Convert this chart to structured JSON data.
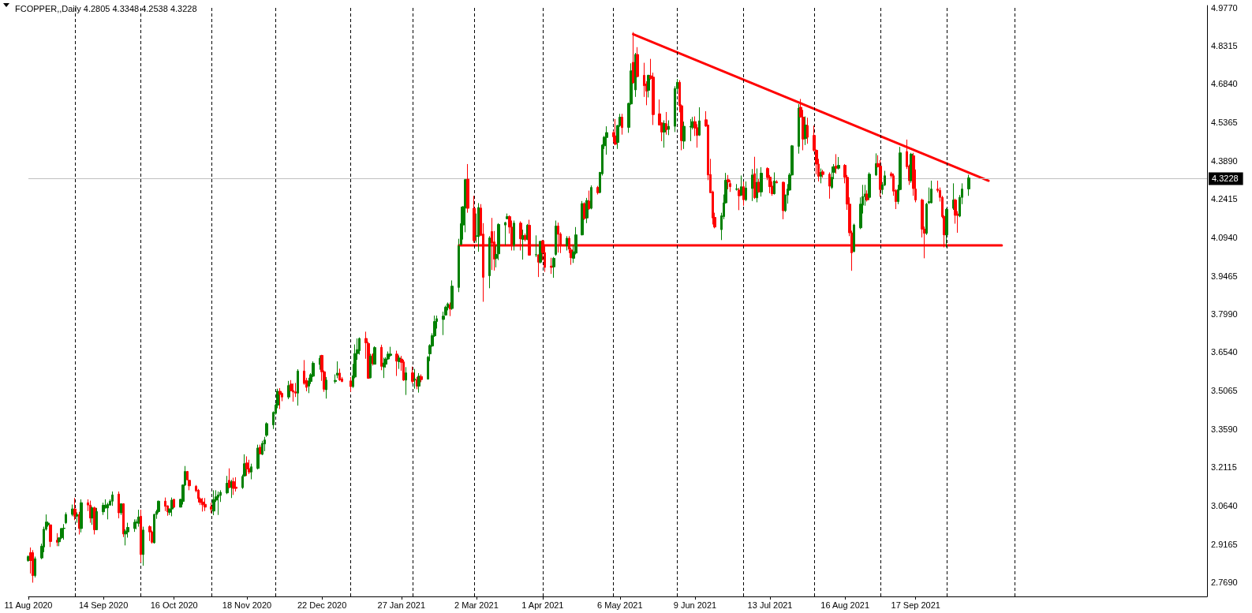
{
  "chart_data": {
    "type": "candlestick",
    "title": "FCOPPER,,Daily 4.2805 4.3348 4.2538 4.3228",
    "x": [
      "2020-08-11",
      "2020-08-12",
      "2020-08-13",
      "2020-08-14",
      "2020-08-17",
      "2020-08-18",
      "2020-08-19",
      "2020-08-20",
      "2020-08-21",
      "2020-08-24",
      "2020-08-25",
      "2020-08-26",
      "2020-08-27",
      "2020-08-28",
      "2020-08-31",
      "2020-09-01",
      "2020-09-02",
      "2020-09-03",
      "2020-09-04",
      "2020-09-07",
      "2020-09-08",
      "2020-09-09",
      "2020-09-10",
      "2020-09-11",
      "2020-09-14",
      "2020-09-15",
      "2020-09-16",
      "2020-09-17",
      "2020-09-18",
      "2020-09-21",
      "2020-09-22",
      "2020-09-23",
      "2020-09-24",
      "2020-09-25",
      "2020-09-28",
      "2020-09-29",
      "2020-09-30",
      "2020-10-01",
      "2020-10-02",
      "2020-10-05",
      "2020-10-06",
      "2020-10-07",
      "2020-10-08",
      "2020-10-09",
      "2020-10-12",
      "2020-10-13",
      "2020-10-14",
      "2020-10-15",
      "2020-10-16",
      "2020-10-19",
      "2020-10-20",
      "2020-10-21",
      "2020-10-22",
      "2020-10-23",
      "2020-10-26",
      "2020-10-27",
      "2020-10-28",
      "2020-10-29",
      "2020-10-30",
      "2020-11-02",
      "2020-11-03",
      "2020-11-04",
      "2020-11-05",
      "2020-11-06",
      "2020-11-09",
      "2020-11-10",
      "2020-11-11",
      "2020-11-12",
      "2020-11-13",
      "2020-11-16",
      "2020-11-17",
      "2020-11-18",
      "2020-11-19",
      "2020-11-20",
      "2020-11-23",
      "2020-11-24",
      "2020-11-25",
      "2020-11-26",
      "2020-11-27",
      "2020-11-30",
      "2020-12-01",
      "2020-12-02",
      "2020-12-03",
      "2020-12-04",
      "2020-12-07",
      "2020-12-08",
      "2020-12-09",
      "2020-12-10",
      "2020-12-11",
      "2020-12-14",
      "2020-12-15",
      "2020-12-16",
      "2020-12-17",
      "2020-12-18",
      "2020-12-21",
      "2020-12-22",
      "2020-12-23",
      "2020-12-24",
      "2020-12-28",
      "2020-12-29",
      "2020-12-30",
      "2020-12-31",
      "2021-01-04",
      "2021-01-05",
      "2021-01-06",
      "2021-01-07",
      "2021-01-08",
      "2021-01-11",
      "2021-01-12",
      "2021-01-13",
      "2021-01-14",
      "2021-01-15",
      "2021-01-18",
      "2021-01-19",
      "2021-01-20",
      "2021-01-21",
      "2021-01-22",
      "2021-01-25",
      "2021-01-26",
      "2021-01-27",
      "2021-01-28",
      "2021-01-29",
      "2021-02-01",
      "2021-02-02",
      "2021-02-03",
      "2021-02-04",
      "2021-02-05",
      "2021-02-08",
      "2021-02-09",
      "2021-02-10",
      "2021-02-11",
      "2021-02-12",
      "2021-02-15",
      "2021-02-16",
      "2021-02-17",
      "2021-02-18",
      "2021-02-19",
      "2021-02-22",
      "2021-02-23",
      "2021-02-24",
      "2021-02-25",
      "2021-02-26",
      "2021-03-01",
      "2021-03-02",
      "2021-03-03",
      "2021-03-04",
      "2021-03-05",
      "2021-03-08",
      "2021-03-09",
      "2021-03-10",
      "2021-03-11",
      "2021-03-12",
      "2021-03-15",
      "2021-03-16",
      "2021-03-17",
      "2021-03-18",
      "2021-03-19",
      "2021-03-22",
      "2021-03-23",
      "2021-03-24",
      "2021-03-25",
      "2021-03-26",
      "2021-03-29",
      "2021-03-30",
      "2021-03-31",
      "2021-04-01",
      "2021-04-02",
      "2021-04-05",
      "2021-04-06",
      "2021-04-07",
      "2021-04-08",
      "2021-04-09",
      "2021-04-12",
      "2021-04-13",
      "2021-04-14",
      "2021-04-15",
      "2021-04-16",
      "2021-04-19",
      "2021-04-20",
      "2021-04-21",
      "2021-04-22",
      "2021-04-23",
      "2021-04-26",
      "2021-04-27",
      "2021-04-28",
      "2021-04-29",
      "2021-04-30",
      "2021-05-03",
      "2021-05-04",
      "2021-05-05",
      "2021-05-06",
      "2021-05-07",
      "2021-05-10",
      "2021-05-11",
      "2021-05-12",
      "2021-05-13",
      "2021-05-14",
      "2021-05-17",
      "2021-05-18",
      "2021-05-19",
      "2021-05-20",
      "2021-05-21",
      "2021-05-24",
      "2021-05-25",
      "2021-05-26",
      "2021-05-27",
      "2021-05-28",
      "2021-05-31",
      "2021-06-01",
      "2021-06-02",
      "2021-06-03",
      "2021-06-04",
      "2021-06-07",
      "2021-06-08",
      "2021-06-09",
      "2021-06-10",
      "2021-06-11",
      "2021-06-14",
      "2021-06-15",
      "2021-06-16",
      "2021-06-17",
      "2021-06-18",
      "2021-06-21",
      "2021-06-22",
      "2021-06-23",
      "2021-06-24",
      "2021-06-25",
      "2021-06-28",
      "2021-06-29",
      "2021-06-30",
      "2021-07-01",
      "2021-07-02",
      "2021-07-05",
      "2021-07-06",
      "2021-07-07",
      "2021-07-08",
      "2021-07-09",
      "2021-07-12",
      "2021-07-13",
      "2021-07-14",
      "2021-07-15",
      "2021-07-16",
      "2021-07-19",
      "2021-07-20",
      "2021-07-21",
      "2021-07-22",
      "2021-07-23",
      "2021-07-26",
      "2021-07-27",
      "2021-07-28",
      "2021-07-29",
      "2021-07-30",
      "2021-08-02",
      "2021-08-03",
      "2021-08-04",
      "2021-08-05",
      "2021-08-06",
      "2021-08-09",
      "2021-08-10",
      "2021-08-11",
      "2021-08-12",
      "2021-08-13",
      "2021-08-16",
      "2021-08-17",
      "2021-08-18",
      "2021-08-19",
      "2021-08-20",
      "2021-08-23",
      "2021-08-24",
      "2021-08-25",
      "2021-08-26",
      "2021-08-27",
      "2021-08-30",
      "2021-08-31",
      "2021-09-01",
      "2021-09-02",
      "2021-09-03",
      "2021-09-06",
      "2021-09-07",
      "2021-09-08",
      "2021-09-09",
      "2021-09-10",
      "2021-09-13",
      "2021-09-14",
      "2021-09-15",
      "2021-09-16",
      "2021-09-17",
      "2021-09-20",
      "2021-09-21",
      "2021-09-22",
      "2021-09-23",
      "2021-09-24",
      "2021-09-27",
      "2021-09-28",
      "2021-09-29",
      "2021-09-30",
      "2021-10-01",
      "2021-10-04",
      "2021-10-05",
      "2021-10-06",
      "2021-10-07",
      "2021-10-08",
      "2021-10-11"
    ],
    "ohlc": [
      [
        2.853,
        2.873,
        2.848,
        2.868
      ],
      [
        2.883,
        2.903,
        2.803,
        2.853
      ],
      [
        2.883,
        2.893,
        2.768,
        2.795
      ],
      [
        2.795,
        2.868,
        2.788,
        2.86
      ],
      [
        2.863,
        2.918,
        2.858,
        2.908
      ],
      [
        2.905,
        2.983,
        2.885,
        2.973
      ],
      [
        2.973,
        3.03,
        2.968,
        3.001
      ],
      [
        2.99,
        3.003,
        2.983,
        2.997
      ],
      [
        2.99,
        2.991,
        2.905,
        2.926
      ],
      [
        2.931,
        2.958,
        2.908,
        2.923
      ],
      [
        2.925,
        2.943,
        2.908,
        2.94
      ],
      [
        2.94,
        2.978,
        2.935,
        2.976
      ],
      [
        2.976,
        2.993,
        2.933,
        2.977
      ],
      [
        2.998,
        3.038,
        2.993,
        3.03
      ],
      [
        3.03,
        3.068,
        3.023,
        3.051
      ],
      [
        3.051,
        3.093,
        3.008,
        3.023
      ],
      [
        3.023,
        3.038,
        2.998,
        3.03
      ],
      [
        3.03,
        3.04,
        2.953,
        2.976
      ],
      [
        2.976,
        3.088,
        2.961,
        3.075
      ],
      [
        3.075,
        3.088,
        3.043,
        3.066
      ],
      [
        3.066,
        3.083,
        2.998,
        3.016
      ],
      [
        3.016,
        3.06,
        2.99,
        3.055
      ],
      [
        3.055,
        3.06,
        2.953,
        2.971
      ],
      [
        2.971,
        3.055,
        2.97,
        3.041
      ],
      [
        3.04,
        3.075,
        3.028,
        3.065
      ],
      [
        3.055,
        3.088,
        3.053,
        3.066
      ],
      [
        3.055,
        3.075,
        3.011,
        3.068
      ],
      [
        3.066,
        3.088,
        3.063,
        3.081
      ],
      [
        3.081,
        3.118,
        3.063,
        3.105
      ],
      [
        3.108,
        3.118,
        3.015,
        3.036
      ],
      [
        3.036,
        3.073,
        3.028,
        3.071
      ],
      [
        3.071,
        3.073,
        2.943,
        2.955
      ],
      [
        2.955,
        2.973,
        2.911,
        2.966
      ],
      [
        2.963,
        2.998,
        2.941,
        2.98
      ],
      [
        2.976,
        3.011,
        2.963,
        3.0
      ],
      [
        2.997,
        3.011,
        2.973,
        3.001
      ],
      [
        2.996,
        3.048,
        2.983,
        3.02
      ],
      [
        3.023,
        3.048,
        2.845,
        2.876
      ],
      [
        2.876,
        2.983,
        2.833,
        2.97
      ],
      [
        2.983,
        2.988,
        2.928,
        2.963
      ],
      [
        2.963,
        2.968,
        2.918,
        2.923
      ],
      [
        2.921,
        3.033,
        2.918,
        3.03
      ],
      [
        3.03,
        3.048,
        3.013,
        3.041
      ],
      [
        3.041,
        3.083,
        3.035,
        3.081
      ],
      [
        3.081,
        3.095,
        3.043,
        3.061
      ],
      [
        3.063,
        3.065,
        3.025,
        3.04
      ],
      [
        3.038,
        3.053,
        3.028,
        3.051
      ],
      [
        3.051,
        3.095,
        3.023,
        3.085
      ],
      [
        3.088,
        3.09,
        3.055,
        3.058
      ],
      [
        3.058,
        3.09,
        3.057,
        3.088
      ],
      [
        3.08,
        3.145,
        3.068,
        3.143
      ],
      [
        3.143,
        3.216,
        3.14,
        3.195
      ],
      [
        3.195,
        3.197,
        3.161,
        3.163
      ],
      [
        3.161,
        3.163,
        3.123,
        3.14
      ],
      [
        3.138,
        3.143,
        3.115,
        3.121
      ],
      [
        3.123,
        3.128,
        3.076,
        3.091
      ],
      [
        3.09,
        3.095,
        3.066,
        3.076
      ],
      [
        3.078,
        3.093,
        3.041,
        3.067
      ],
      [
        3.069,
        3.093,
        3.043,
        3.058
      ],
      [
        3.06,
        3.075,
        3.035,
        3.05
      ],
      [
        3.043,
        3.123,
        3.027,
        3.087
      ],
      [
        3.085,
        3.123,
        3.078,
        3.098
      ],
      [
        3.096,
        3.118,
        3.028,
        3.105
      ],
      [
        3.103,
        3.123,
        3.078,
        3.115
      ],
      [
        3.113,
        3.178,
        3.108,
        3.15
      ],
      [
        3.161,
        3.207,
        3.131,
        3.133
      ],
      [
        3.133,
        3.163,
        3.093,
        3.156
      ],
      [
        3.156,
        3.171,
        3.105,
        3.13
      ],
      [
        3.135,
        3.173,
        3.118,
        3.13
      ],
      [
        3.133,
        3.183,
        3.128,
        3.176
      ],
      [
        3.178,
        3.261,
        3.175,
        3.225
      ],
      [
        3.228,
        3.253,
        3.178,
        3.205
      ],
      [
        3.206,
        3.24,
        3.185,
        3.193
      ],
      [
        3.193,
        3.225,
        3.165,
        3.213
      ],
      [
        3.207,
        3.298,
        3.203,
        3.285
      ],
      [
        3.288,
        3.298,
        3.261,
        3.263
      ],
      [
        3.261,
        3.313,
        3.258,
        3.303
      ],
      [
        3.301,
        3.328,
        3.273,
        3.316
      ],
      [
        3.334,
        3.384,
        3.328,
        3.379
      ],
      [
        3.374,
        3.426,
        3.358,
        3.422
      ],
      [
        3.418,
        3.456,
        3.413,
        3.45
      ],
      [
        3.45,
        3.513,
        3.438,
        3.503
      ],
      [
        3.503,
        3.515,
        3.435,
        3.491
      ],
      [
        3.495,
        3.498,
        3.465,
        3.481
      ],
      [
        3.481,
        3.543,
        3.473,
        3.525
      ],
      [
        3.531,
        3.546,
        3.503,
        3.505
      ],
      [
        3.506,
        3.533,
        3.463,
        3.5
      ],
      [
        3.501,
        3.535,
        3.481,
        3.496
      ],
      [
        3.496,
        3.588,
        3.448,
        3.581
      ],
      [
        3.581,
        3.623,
        3.528,
        3.533
      ],
      [
        3.545,
        3.555,
        3.503,
        3.518
      ],
      [
        3.523,
        3.555,
        3.496,
        3.543
      ],
      [
        3.541,
        3.573,
        3.531,
        3.567
      ],
      [
        3.561,
        3.618,
        3.558,
        3.611
      ],
      [
        3.606,
        3.641,
        3.586,
        3.63
      ],
      [
        3.641,
        3.643,
        3.543,
        3.578
      ],
      [
        3.578,
        3.583,
        3.501,
        3.511
      ],
      [
        3.509,
        3.558,
        3.475,
        3.546
      ],
      [
        3.541,
        3.568,
        3.533,
        3.545
      ],
      [
        3.565,
        3.618,
        3.553,
        3.573
      ],
      [
        3.573,
        3.59,
        3.543,
        3.547
      ],
      [
        3.551,
        3.558,
        3.538,
        3.541
      ],
      [
        3.543,
        3.558,
        3.501,
        3.521
      ],
      [
        3.521,
        3.608,
        3.516,
        3.563
      ],
      [
        3.558,
        3.683,
        3.553,
        3.648
      ],
      [
        3.648,
        3.706,
        3.624,
        3.663
      ],
      [
        3.659,
        3.71,
        3.644,
        3.706
      ],
      [
        3.706,
        3.732,
        3.628,
        3.689
      ],
      [
        3.687,
        3.693,
        3.551,
        3.553
      ],
      [
        3.555,
        3.647,
        3.553,
        3.638
      ],
      [
        3.644,
        3.649,
        3.602,
        3.609
      ],
      [
        3.607,
        3.676,
        3.606,
        3.671
      ],
      [
        3.672,
        3.682,
        3.584,
        3.599
      ],
      [
        3.596,
        3.632,
        3.554,
        3.612
      ],
      [
        3.607,
        3.634,
        3.594,
        3.627
      ],
      [
        3.627,
        3.656,
        3.624,
        3.646
      ],
      [
        3.641,
        3.674,
        3.636,
        3.646
      ],
      [
        3.646,
        3.659,
        3.562,
        3.619
      ],
      [
        3.617,
        3.641,
        3.589,
        3.631
      ],
      [
        3.627,
        3.639,
        3.582,
        3.614
      ],
      [
        3.616,
        3.624,
        3.543,
        3.546
      ],
      [
        3.546,
        3.596,
        3.489,
        3.574
      ],
      [
        3.574,
        3.598,
        3.533,
        3.541
      ],
      [
        3.546,
        3.589,
        3.513,
        3.551
      ],
      [
        3.548,
        3.558,
        3.511,
        3.523
      ],
      [
        3.523,
        3.573,
        3.498,
        3.561
      ],
      [
        3.56,
        3.568,
        3.538,
        3.548
      ],
      [
        3.55,
        3.639,
        3.548,
        3.634
      ],
      [
        3.647,
        3.684,
        3.619,
        3.679
      ],
      [
        3.677,
        3.726,
        3.674,
        3.717
      ],
      [
        3.716,
        3.794,
        3.712,
        3.771
      ],
      [
        3.771,
        3.794,
        3.744,
        3.782
      ],
      [
        3.779,
        3.809,
        3.719,
        3.792
      ],
      [
        3.796,
        3.832,
        3.794,
        3.826
      ],
      [
        3.824,
        3.844,
        3.814,
        3.839
      ],
      [
        3.836,
        3.844,
        3.792,
        3.819
      ],
      [
        3.821,
        3.929,
        3.816,
        3.907
      ],
      [
        3.902,
        4.089,
        3.884,
        4.061
      ],
      [
        4.067,
        4.212,
        4.064,
        4.147
      ],
      [
        4.142,
        4.214,
        4.086,
        4.212
      ],
      [
        4.207,
        4.319,
        4.114,
        4.316
      ],
      [
        4.318,
        4.376,
        4.189,
        4.206
      ],
      [
        4.206,
        4.254,
        4.074,
        4.082
      ],
      [
        4.099,
        4.186,
        4.074,
        4.1
      ],
      [
        4.097,
        4.226,
        4.039,
        4.209
      ],
      [
        4.207,
        4.222,
        4.099,
        4.102
      ],
      [
        4.107,
        4.149,
        3.847,
        3.941
      ],
      [
        3.947,
        4.099,
        3.899,
        4.092
      ],
      [
        4.117,
        4.169,
        3.969,
        4.072
      ],
      [
        4.077,
        4.119,
        3.967,
        4.011
      ],
      [
        4.014,
        4.064,
        3.979,
        4.029
      ],
      [
        4.031,
        4.149,
        4.007,
        4.144
      ],
      [
        4.142,
        4.154,
        4.064,
        4.151
      ],
      [
        4.166,
        4.186,
        4.164,
        4.174
      ],
      [
        4.174,
        4.179,
        4.109,
        4.134
      ],
      [
        4.134,
        4.159,
        4.044,
        4.064
      ],
      [
        4.064,
        4.159,
        4.044,
        4.149
      ],
      [
        4.149,
        4.156,
        4.044,
        4.089
      ],
      [
        4.086,
        4.124,
        4.009,
        4.102
      ],
      [
        4.102,
        4.109,
        4.079,
        4.086
      ],
      [
        4.086,
        4.146,
        4.084,
        4.141
      ],
      [
        4.141,
        4.162,
        4.024,
        4.026
      ],
      [
        4.027,
        4.102,
        4.019,
        4.028
      ],
      [
        4.027,
        4.029,
        3.942,
        3.999
      ],
      [
        3.999,
        4.081,
        3.994,
        4.079
      ],
      [
        4.081,
        4.084,
        4.006,
        4.036
      ],
      [
        4.036,
        4.064,
        3.962,
        3.979
      ],
      [
        3.984,
        4.016,
        3.954,
        3.979
      ],
      [
        3.981,
        4.019,
        3.939,
        4.014
      ],
      [
        4.029,
        4.159,
        4.024,
        4.138
      ],
      [
        4.138,
        4.151,
        4.036,
        4.106
      ],
      [
        4.107,
        4.114,
        4.034,
        4.064
      ],
      [
        4.062,
        4.099,
        4.044,
        4.091
      ],
      [
        4.091,
        4.099,
        4.034,
        4.049
      ],
      [
        4.046,
        4.054,
        3.989,
        4.016
      ],
      [
        4.014,
        4.066,
        3.996,
        4.039
      ],
      [
        4.034,
        4.134,
        4.029,
        4.104
      ],
      [
        4.104,
        4.234,
        4.102,
        4.224
      ],
      [
        4.224,
        4.229,
        4.162,
        4.167
      ],
      [
        4.169,
        4.246,
        4.149,
        4.236
      ],
      [
        4.234,
        4.274,
        4.201,
        4.204
      ],
      [
        4.206,
        4.294,
        4.202,
        4.286
      ],
      [
        4.286,
        4.292,
        4.259,
        4.266
      ],
      [
        4.267,
        4.346,
        4.264,
        4.344
      ],
      [
        4.339,
        4.452,
        4.332,
        4.449
      ],
      [
        4.446,
        4.484,
        4.434,
        4.479
      ],
      [
        4.478,
        4.521,
        4.412,
        4.497
      ],
      [
        4.497,
        4.504,
        4.459,
        4.481
      ],
      [
        4.484,
        4.549,
        4.449,
        4.452
      ],
      [
        4.459,
        4.526,
        4.434,
        4.524
      ],
      [
        4.524,
        4.569,
        4.519,
        4.556
      ],
      [
        4.556,
        4.569,
        4.489,
        4.516
      ],
      [
        4.517,
        4.612,
        4.496,
        4.609
      ],
      [
        4.607,
        4.763,
        4.604,
        4.734
      ],
      [
        4.767,
        4.883,
        4.685,
        4.688
      ],
      [
        4.661,
        4.803,
        4.634,
        4.797
      ],
      [
        4.797,
        4.825,
        4.709,
        4.712
      ],
      [
        4.717,
        4.765,
        4.634,
        4.677
      ],
      [
        4.684,
        4.694,
        4.602,
        4.656
      ],
      [
        4.659,
        4.719,
        4.632,
        4.717
      ],
      [
        4.715,
        4.78,
        4.7,
        4.705
      ],
      [
        4.71,
        4.727,
        4.526,
        4.566
      ],
      [
        4.569,
        4.624,
        4.524,
        4.526
      ],
      [
        4.534,
        4.536,
        4.464,
        4.499
      ],
      [
        4.499,
        4.544,
        4.439,
        4.532
      ],
      [
        4.531,
        4.576,
        4.489,
        4.507
      ],
      [
        4.509,
        4.544,
        4.487,
        4.521
      ],
      [
        4.521,
        4.675,
        4.499,
        4.666
      ],
      [
        4.666,
        4.703,
        4.655,
        4.69
      ],
      [
        4.69,
        4.698,
        4.575,
        4.6
      ],
      [
        4.6,
        4.605,
        4.429,
        4.466
      ],
      [
        4.464,
        4.539,
        4.434,
        4.521
      ],
      [
        4.518,
        4.549,
        4.464,
        4.521
      ],
      [
        4.517,
        4.557,
        4.509,
        4.539
      ],
      [
        4.539,
        4.559,
        4.484,
        4.514
      ],
      [
        4.516,
        4.529,
        4.439,
        4.486
      ],
      [
        4.487,
        4.594,
        4.484,
        4.542
      ],
      [
        4.546,
        4.579,
        4.519,
        4.522
      ],
      [
        4.526,
        4.526,
        4.314,
        4.334
      ],
      [
        4.336,
        4.396,
        4.264,
        4.266
      ],
      [
        4.269,
        4.274,
        4.144,
        4.169
      ],
      [
        4.171,
        4.189,
        4.129,
        4.134
      ],
      [
        4.124,
        4.189,
        4.084,
        4.177
      ],
      [
        4.174,
        4.259,
        4.164,
        4.227
      ],
      [
        4.227,
        4.342,
        4.224,
        4.314
      ],
      [
        4.316,
        4.334,
        4.279,
        4.307
      ],
      [
        4.301,
        4.314,
        4.269,
        4.289
      ],
      [
        4.279,
        4.299,
        4.274,
        4.28
      ],
      [
        4.276,
        4.284,
        4.199,
        4.254
      ],
      [
        4.256,
        4.332,
        4.254,
        4.289
      ],
      [
        4.289,
        4.309,
        4.216,
        4.239
      ],
      [
        4.239,
        4.309,
        4.234,
        4.284
      ],
      [
        4.282,
        4.357,
        4.234,
        4.334
      ],
      [
        4.339,
        4.404,
        4.242,
        4.247
      ],
      [
        4.246,
        4.359,
        4.229,
        4.306
      ],
      [
        4.306,
        4.319,
        4.266,
        4.269
      ],
      [
        4.269,
        4.364,
        4.251,
        4.341
      ],
      [
        4.359,
        4.364,
        4.314,
        4.324
      ],
      [
        4.326,
        4.334,
        4.264,
        4.289
      ],
      [
        4.291,
        4.309,
        4.254,
        4.262
      ],
      [
        4.262,
        4.344,
        4.259,
        4.311
      ],
      [
        4.308,
        4.314,
        4.302,
        4.304
      ],
      [
        4.306,
        4.309,
        4.164,
        4.197
      ],
      [
        4.197,
        4.259,
        4.192,
        4.257
      ],
      [
        4.257,
        4.299,
        4.224,
        4.28
      ],
      [
        4.276,
        4.342,
        4.274,
        4.334
      ],
      [
        4.334,
        4.449,
        4.332,
        4.446
      ],
      [
        4.444,
        4.606,
        4.416,
        4.591
      ],
      [
        4.594,
        4.626,
        4.554,
        4.557
      ],
      [
        4.556,
        4.584,
        4.429,
        4.472
      ],
      [
        4.474,
        4.559,
        4.449,
        4.526
      ],
      [
        4.524,
        4.554,
        4.454,
        4.479
      ],
      [
        4.486,
        4.524,
        4.424,
        4.429
      ],
      [
        4.429,
        4.432,
        4.336,
        4.376
      ],
      [
        4.376,
        4.396,
        4.309,
        4.329
      ],
      [
        4.329,
        4.359,
        4.302,
        4.344
      ],
      [
        4.346,
        4.354,
        4.324,
        4.336
      ],
      [
        4.337,
        4.344,
        4.243,
        4.291
      ],
      [
        4.286,
        4.366,
        4.28,
        4.325
      ],
      [
        4.344,
        4.376,
        4.318,
        4.366
      ],
      [
        4.368,
        4.414,
        4.339,
        4.36
      ],
      [
        4.36,
        4.403,
        4.355,
        4.371
      ],
      [
        4.371,
        4.376,
        4.302,
        4.325
      ],
      [
        4.325,
        4.334,
        4.2,
        4.222
      ],
      [
        4.222,
        4.248,
        4.099,
        4.112
      ],
      [
        4.112,
        4.12,
        3.966,
        4.035
      ],
      [
        4.04,
        4.147,
        4.037,
        4.142
      ],
      [
        4.131,
        4.248,
        4.126,
        4.222
      ],
      [
        4.218,
        4.296,
        4.186,
        4.251
      ],
      [
        4.251,
        4.296,
        4.216,
        4.261
      ],
      [
        4.261,
        4.275,
        4.232,
        4.238
      ],
      [
        4.248,
        4.344,
        4.238,
        4.337
      ],
      [
        4.334,
        4.417,
        4.33,
        4.378
      ],
      [
        4.378,
        4.41,
        4.363,
        4.366
      ],
      [
        4.368,
        4.392,
        4.25,
        4.278
      ],
      [
        4.278,
        4.307,
        4.259,
        4.296
      ],
      [
        4.296,
        4.35,
        4.291,
        4.331
      ],
      [
        4.339,
        4.346,
        4.323,
        4.331
      ],
      [
        4.331,
        4.339,
        4.254,
        4.272
      ],
      [
        4.275,
        4.28,
        4.203,
        4.232
      ],
      [
        4.232,
        4.296,
        4.222,
        4.278
      ],
      [
        4.278,
        4.442,
        4.275,
        4.419
      ],
      [
        4.424,
        4.47,
        4.357,
        4.366
      ],
      [
        4.368,
        4.374,
        4.296,
        4.312
      ],
      [
        4.312,
        4.419,
        4.304,
        4.414
      ],
      [
        4.408,
        4.419,
        4.254,
        4.282
      ],
      [
        4.28,
        4.355,
        4.229,
        4.238
      ],
      [
        4.238,
        4.243,
        4.094,
        4.126
      ],
      [
        4.126,
        4.136,
        4.014,
        4.11
      ],
      [
        4.11,
        4.227,
        4.104,
        4.222
      ],
      [
        4.227,
        4.286,
        4.222,
        4.232
      ],
      [
        4.227,
        4.312,
        4.225,
        4.28
      ],
      [
        4.28,
        4.312,
        4.267,
        4.275
      ],
      [
        4.275,
        4.286,
        4.232,
        4.248
      ],
      [
        4.248,
        4.254,
        4.168,
        4.174
      ],
      [
        4.174,
        4.179,
        4.056,
        4.104
      ],
      [
        4.104,
        4.206,
        4.056,
        4.202
      ],
      [
        4.206,
        4.302,
        4.2,
        4.238
      ],
      [
        4.238,
        4.243,
        4.147,
        4.179
      ],
      [
        4.184,
        4.195,
        4.112,
        4.179
      ],
      [
        4.176,
        4.257,
        4.172,
        4.248
      ],
      [
        4.248,
        4.302,
        4.222,
        4.28
      ],
      [
        4.2805,
        4.3348,
        4.2538,
        4.3228
      ]
    ],
    "colors": [
      "#008000",
      "#ff0000",
      "#ff0000",
      "#008000",
      "#008000",
      "#008000",
      "#008000",
      "#008000",
      "#ff0000",
      "#ff0000",
      "#008000",
      "#008000",
      "#008000",
      "#008000",
      "#008000",
      "#ff0000",
      "#008000",
      "#ff0000",
      "#008000",
      "#ff0000",
      "#ff0000",
      "#008000",
      "#ff0000",
      "#008000",
      "#008000",
      "#008000",
      "#008000",
      "#008000",
      "#008000",
      "#ff0000",
      "#008000",
      "#ff0000",
      "#008000",
      "#008000",
      "#008000",
      "#008000",
      "#008000",
      "#ff0000",
      "#008000",
      "#ff0000",
      "#ff0000",
      "#008000",
      "#008000",
      "#008000",
      "#ff0000",
      "#ff0000",
      "#008000",
      "#008000",
      "#ff0000",
      "#008000",
      "#008000",
      "#008000",
      "#ff0000",
      "#ff0000",
      "#ff0000",
      "#ff0000",
      "#ff0000",
      "#ff0000",
      "#ff0000",
      "#ff0000",
      "#008000",
      "#008000",
      "#008000",
      "#008000",
      "#008000",
      "#ff0000",
      "#008000",
      "#ff0000",
      "#ff0000",
      "#008000",
      "#008000",
      "#ff0000",
      "#ff0000",
      "#008000",
      "#008000",
      "#ff0000",
      "#008000",
      "#008000",
      "#008000",
      "#008000",
      "#008000",
      "#008000",
      "#ff0000",
      "#ff0000",
      "#008000",
      "#ff0000",
      "#ff0000",
      "#ff0000",
      "#008000",
      "#ff0000",
      "#ff0000",
      "#008000",
      "#008000",
      "#008000",
      "#008000",
      "#ff0000",
      "#ff0000",
      "#008000",
      "#008000",
      "#008000",
      "#ff0000",
      "#ff0000",
      "#ff0000",
      "#008000",
      "#008000",
      "#008000",
      "#008000",
      "#ff0000",
      "#ff0000",
      "#008000",
      "#ff0000",
      "#008000",
      "#ff0000",
      "#008000",
      "#008000",
      "#008000",
      "#008000",
      "#ff0000",
      "#008000",
      "#ff0000",
      "#ff0000",
      "#008000",
      "#ff0000",
      "#008000",
      "#ff0000",
      "#008000",
      "#ff0000",
      "#008000",
      "#008000",
      "#008000",
      "#008000",
      "#008000",
      "#008000",
      "#008000",
      "#008000",
      "#ff0000",
      "#008000",
      "#008000",
      "#008000",
      "#008000",
      "#008000",
      "#ff0000",
      "#ff0000",
      "#008000",
      "#008000",
      "#ff0000",
      "#ff0000",
      "#008000",
      "#ff0000",
      "#ff0000",
      "#008000",
      "#008000",
      "#008000",
      "#008000",
      "#ff0000",
      "#ff0000",
      "#008000",
      "#ff0000",
      "#008000",
      "#ff0000",
      "#008000",
      "#ff0000",
      "#008000",
      "#ff0000",
      "#008000",
      "#ff0000",
      "#ff0000",
      "#ff0000",
      "#008000",
      "#008000",
      "#ff0000",
      "#ff0000",
      "#008000",
      "#ff0000",
      "#ff0000",
      "#008000",
      "#008000",
      "#008000",
      "#ff0000",
      "#008000",
      "#ff0000",
      "#008000",
      "#ff0000",
      "#008000",
      "#008000",
      "#008000",
      "#008000",
      "#ff0000",
      "#ff0000",
      "#008000",
      "#008000",
      "#ff0000",
      "#008000",
      "#008000",
      "#ff0000",
      "#008000",
      "#ff0000",
      "#ff0000",
      "#ff0000",
      "#008000",
      "#ff0000",
      "#ff0000",
      "#ff0000",
      "#ff0000",
      "#008000",
      "#ff0000",
      "#008000",
      "#008000",
      "#008000",
      "#ff0000",
      "#ff0000",
      "#008000",
      "#008000",
      "#008000",
      "#ff0000",
      "#ff0000",
      "#008000",
      "#ff0000",
      "#ff0000",
      "#ff0000",
      "#ff0000",
      "#ff0000",
      "#008000",
      "#008000",
      "#008000",
      "#ff0000",
      "#ff0000",
      "#008000",
      "#ff0000",
      "#008000",
      "#ff0000",
      "#008000",
      "#008000",
      "#ff0000",
      "#008000",
      "#ff0000",
      "#008000",
      "#ff0000",
      "#ff0000",
      "#ff0000",
      "#008000",
      "#ff0000",
      "#ff0000",
      "#008000",
      "#008000",
      "#008000",
      "#008000",
      "#008000",
      "#ff0000",
      "#ff0000",
      "#008000",
      "#ff0000",
      "#ff0000",
      "#ff0000",
      "#ff0000",
      "#008000",
      "#ff0000",
      "#ff0000",
      "#008000",
      "#008000",
      "#ff0000",
      "#008000",
      "#ff0000",
      "#ff0000",
      "#ff0000",
      "#ff0000",
      "#008000",
      "#008000",
      "#008000",
      "#008000",
      "#ff0000",
      "#008000",
      "#008000",
      "#ff0000",
      "#ff0000",
      "#008000",
      "#008000",
      "#ff0000",
      "#ff0000",
      "#ff0000",
      "#008000",
      "#008000",
      "#ff0000",
      "#ff0000",
      "#008000",
      "#ff0000",
      "#ff0000",
      "#ff0000",
      "#ff0000",
      "#008000",
      "#008000",
      "#008000",
      "#ff0000",
      "#ff0000",
      "#ff0000",
      "#ff0000",
      "#008000",
      "#008000",
      "#ff0000",
      "#ff0000",
      "#008000",
      "#008000",
      "#008000"
    ],
    "series": [
      {
        "type": "line",
        "x": [
          "2021-05-12",
          "2021-10-20"
        ],
        "values": [
          4.875,
          4.312
        ],
        "color": "#ff0000"
      },
      {
        "type": "line",
        "x": [
          "2021-02-22",
          "2021-10-26"
        ],
        "values": [
          4.064,
          4.064
        ],
        "color": "#ff0000"
      }
    ],
    "xlim": [
      "2020-08-11",
      "2022-01-27"
    ],
    "ylim": [
      2.715,
      4.985
    ],
    "xticks": [
      {
        "value": "2020-08-11",
        "label": "11 Aug 2020"
      },
      {
        "value": "2020-09-14",
        "label": "14 Sep 2020"
      },
      {
        "value": "2020-10-16",
        "label": "16 Oct 2020"
      },
      {
        "value": "2020-11-18",
        "label": "18 Nov 2020"
      },
      {
        "value": "2020-12-22",
        "label": "22 Dec 2020"
      },
      {
        "value": "2021-01-27",
        "label": "27 Jan 2021"
      },
      {
        "value": "2021-03-02",
        "label": "2 Mar 2021"
      },
      {
        "value": "2021-04-01",
        "label": "1 Apr 2021"
      },
      {
        "value": "2021-05-06",
        "label": "6 May 2021"
      },
      {
        "value": "2021-06-09",
        "label": "9 Jun 2021"
      },
      {
        "value": "2021-07-13",
        "label": "13 Jul 2021"
      },
      {
        "value": "2021-08-16",
        "label": "16 Aug 2021"
      },
      {
        "value": "2021-09-17",
        "label": "17 Sep 2021"
      }
    ],
    "yticks": [
      {
        "value": 2.769,
        "label": "2.7690"
      },
      2.9165,
      {
        "value": 3.064,
        "label": "3.0640"
      },
      3.2115,
      {
        "value": 3.359,
        "label": "3.3590"
      },
      3.5065,
      {
        "value": 3.654,
        "label": "3.6540"
      },
      {
        "value": 3.799,
        "label": "3.7990"
      },
      3.9465,
      {
        "value": 4.094,
        "label": "4.0940"
      },
      4.2415,
      {
        "value": 4.389,
        "label": "4.3890"
      },
      4.5365,
      {
        "value": 4.684,
        "label": "4.6840"
      },
      4.8315,
      {
        "value": 4.977,
        "label": "4.9770"
      }
    ],
    "ref_lines": [
      {
        "axis": "y",
        "value": 4.3228,
        "label": "4.3228",
        "color": "#c0c0c0",
        "line_style": "solid"
      },
      {
        "axis": "x",
        "value": "2020-09-01",
        "color": "#000000",
        "line_style": "dashed"
      },
      {
        "axis": "x",
        "value": "2020-10-01",
        "color": "#000000",
        "line_style": "dashed"
      },
      {
        "axis": "x",
        "value": "2020-11-02",
        "color": "#000000",
        "line_style": "dashed"
      },
      {
        "axis": "x",
        "value": "2020-12-01",
        "color": "#000000",
        "line_style": "dashed"
      },
      {
        "axis": "x",
        "value": "2021-01-04",
        "color": "#000000",
        "line_style": "dashed"
      },
      {
        "axis": "x",
        "value": "2021-02-01",
        "color": "#000000",
        "line_style": "dashed"
      },
      {
        "axis": "x",
        "value": "2021-03-01",
        "color": "#000000",
        "line_style": "dashed"
      },
      {
        "axis": "x",
        "value": "2021-04-01",
        "color": "#000000",
        "line_style": "dashed"
      },
      {
        "axis": "x",
        "value": "2021-05-03",
        "color": "#000000",
        "line_style": "dashed"
      },
      {
        "axis": "x",
        "value": "2021-06-01",
        "color": "#000000",
        "line_style": "dashed"
      },
      {
        "axis": "x",
        "value": "2021-07-01",
        "color": "#000000",
        "line_style": "dashed"
      },
      {
        "axis": "x",
        "value": "2021-08-02",
        "color": "#000000",
        "line_style": "dashed"
      },
      {
        "axis": "x",
        "value": "2021-09-01",
        "color": "#000000",
        "line_style": "dashed"
      },
      {
        "axis": "x",
        "value": "2021-10-01",
        "color": "#000000",
        "line_style": "dashed"
      },
      {
        "axis": "x",
        "value": "2021-11-01",
        "color": "#000000",
        "line_style": "dashed"
      }
    ]
  }
}
